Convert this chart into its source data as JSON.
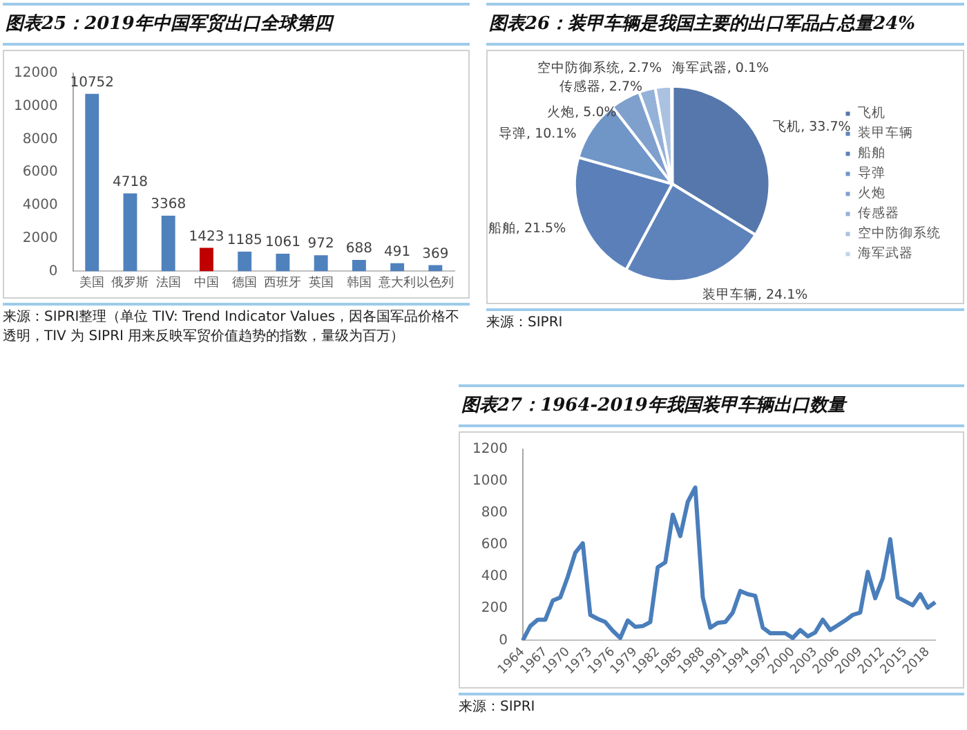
{
  "chart_data": [
    {
      "type": "bar",
      "title": "图表25：2019年中国军贸出口全球第四",
      "categories": [
        "美国",
        "俄罗斯",
        "法国",
        "中国",
        "德国",
        "西班牙",
        "英国",
        "韩国",
        "意大利",
        "以色列"
      ],
      "values": [
        10752,
        4718,
        3368,
        1423,
        1185,
        1061,
        972,
        688,
        491,
        369
      ],
      "colors": [
        "#4f81bd",
        "#4f81bd",
        "#4f81bd",
        "#c00000",
        "#4f81bd",
        "#4f81bd",
        "#4f81bd",
        "#4f81bd",
        "#4f81bd",
        "#4f81bd"
      ],
      "ylim": [
        0,
        12000
      ],
      "yticks": [
        0,
        2000,
        4000,
        6000,
        8000,
        10000,
        12000
      ],
      "data_labels": true,
      "grid": false,
      "legend": false,
      "annotations": [
        "来源：SIPRI整理（单位 TIV: Trend Indicator Values，因各国军品价格不透明，TIV 为 SIPRI 用来反映军贸价值趋势的指数，量级为百万）"
      ]
    },
    {
      "type": "pie",
      "title": "图表26：装甲车辆是我国主要的出口军品占总量24%",
      "categories": [
        "飞机",
        "装甲车辆",
        "船舶",
        "导弹",
        "火炮",
        "传感器",
        "空中防御系统",
        "海军武器"
      ],
      "values": [
        33.7,
        24.1,
        21.5,
        10.1,
        5.0,
        2.7,
        2.7,
        0.1
      ],
      "colors": [
        "#5577ab",
        "#5e83bb",
        "#5b80b9",
        "#7096c8",
        "#7fa0cd",
        "#94b1d8",
        "#aac1e0",
        "#c4d3ea"
      ],
      "value_labels": [
        "飞机, 33.7%",
        "装甲车辆, 24.1%",
        "船舶, 21.5%",
        "导弹, 10.1%",
        "火炮, 5.0%",
        "传感器, 2.7%",
        "空中防御系统, 2.7%",
        "海军武器, 0.1%"
      ],
      "legend": "right",
      "annotations": [
        "来源：SIPRI"
      ]
    },
    {
      "type": "line",
      "title": "图表27：1964-2019年我国装甲车辆出口数量",
      "categories": [
        "1964",
        null,
        null,
        "1967",
        null,
        null,
        "1970",
        null,
        null,
        "1973",
        null,
        null,
        "1976",
        null,
        null,
        "1979",
        null,
        null,
        "1982",
        null,
        null,
        "1985",
        null,
        null,
        "1988",
        null,
        null,
        "1991",
        null,
        null,
        "1994",
        null,
        null,
        "1997",
        null,
        null,
        "2000",
        null,
        null,
        "2003",
        null,
        null,
        "2006",
        null,
        null,
        "2009",
        null,
        null,
        "2012",
        null,
        null,
        "2015",
        null,
        null,
        "2018",
        null
      ],
      "series": [
        {
          "color": "#4a7ebb",
          "values": [
            0,
            90,
            130,
            130,
            250,
            270,
            400,
            550,
            610,
            160,
            135,
            115,
            60,
            15,
            125,
            85,
            90,
            115,
            460,
            490,
            790,
            655,
            870,
            960,
            270,
            80,
            110,
            115,
            175,
            310,
            290,
            280,
            80,
            45,
            45,
            45,
            15,
            65,
            25,
            50,
            130,
            65,
            95,
            125,
            160,
            175,
            430,
            265,
            390,
            635,
            270,
            245,
            220,
            290,
            205,
            240
          ]
        }
      ],
      "ylim": [
        0,
        1200
      ],
      "yticks": [
        0,
        200,
        400,
        600,
        800,
        1000,
        1200
      ],
      "grid": false,
      "legend": false,
      "marker": "none",
      "annotations": [
        "来源：SIPRI"
      ]
    }
  ]
}
